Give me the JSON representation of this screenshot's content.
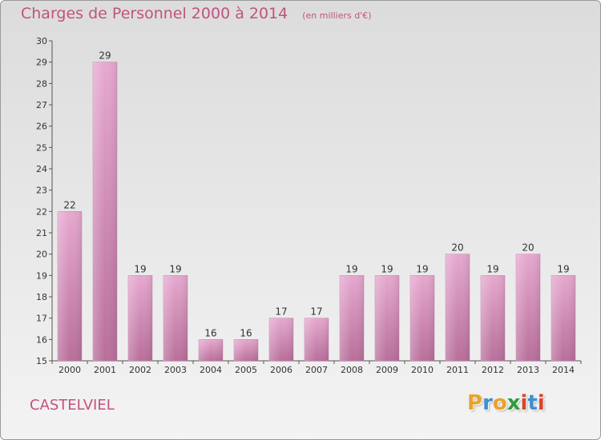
{
  "chart_data": {
    "type": "bar",
    "title": "Charges de Personnel 2000 à 2014",
    "subtitle": "(en milliers d'€)",
    "categories": [
      "2000",
      "2001",
      "2002",
      "2003",
      "2004",
      "2005",
      "2006",
      "2007",
      "2008",
      "2009",
      "2010",
      "2011",
      "2012",
      "2013",
      "2014"
    ],
    "values": [
      22,
      29,
      19,
      19,
      16,
      16,
      17,
      17,
      19,
      19,
      19,
      20,
      19,
      20,
      19
    ],
    "data_labels": [
      "22",
      "29",
      "19",
      "19",
      "16",
      "16",
      "17",
      "17",
      "19",
      "19",
      "19",
      "20",
      "19",
      "20",
      "19"
    ],
    "ylim": [
      15,
      30
    ],
    "yticks": [
      15,
      16,
      17,
      18,
      19,
      20,
      21,
      22,
      23,
      24,
      25,
      26,
      27,
      28,
      29,
      30
    ],
    "grid": false,
    "bar_color": "#d88fb8"
  },
  "footer": {
    "commune": "CASTELVIEL",
    "logo_letters": [
      {
        "char": "P",
        "color": "#e8a32a"
      },
      {
        "char": "r",
        "color": "#3f8fd2"
      },
      {
        "char": "o",
        "color": "#e8a32a"
      },
      {
        "char": "x",
        "color": "#2e9e3e"
      },
      {
        "char": "i",
        "color": "#d6452c"
      },
      {
        "char": "t",
        "color": "#3f8fd2"
      },
      {
        "char": "i",
        "color": "#d6452c"
      }
    ]
  },
  "colors": {
    "title": "#c2527e",
    "axis": "#555555"
  }
}
